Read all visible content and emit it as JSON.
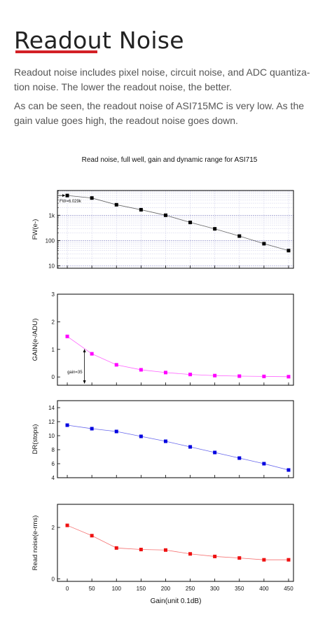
{
  "heading": "Readout Noise",
  "paragraphs": [
    "Readout noise includes pixel noise, circuit noise, and ADC quantiza-tion noise. The lower the readout noise, the better.",
    "As can be seen, the readout noise of ASI715MC is very low. As the gain value goes high, the readout noise goes down."
  ],
  "colors": {
    "accent": "#d32026",
    "fw": "#000000",
    "gain": "#ff00ff",
    "dr": "#0000e0",
    "rn": "#ee1111"
  },
  "chart_data": {
    "type": "scatter",
    "title": "Read noise, full well, gain and dynamic range for ASI715",
    "xlabel": "Gain(unit 0.1dB)",
    "x": [
      0,
      50,
      100,
      150,
      200,
      250,
      300,
      350,
      400,
      450
    ],
    "xticks": [
      "0",
      "50",
      "100",
      "150",
      "200",
      "250",
      "300",
      "350",
      "400",
      "450"
    ],
    "xlim": [
      -20,
      460
    ],
    "panels": [
      {
        "key": "fw",
        "ylabel": "FW(e-)",
        "scale": "log",
        "ylim": [
          8,
          9500
        ],
        "yticks": [
          {
            "v": 10,
            "t": "10"
          },
          {
            "v": 100,
            "t": "100"
          },
          {
            "v": 1000,
            "t": "1k"
          }
        ],
        "grid": true,
        "values": [
          6029,
          4800,
          2600,
          1650,
          1000,
          520,
          290,
          150,
          75,
          40
        ],
        "annotation": "FW=6.029k"
      },
      {
        "key": "gain",
        "ylabel": "GAIN(e-/ADU)",
        "scale": "linear",
        "ylim": [
          -0.3,
          3
        ],
        "yticks": [
          {
            "v": 0,
            "t": "0"
          },
          {
            "v": 1,
            "t": "1"
          },
          {
            "v": 2,
            "t": "2"
          },
          {
            "v": 3,
            "t": "3"
          }
        ],
        "grid": false,
        "values": [
          1.47,
          0.84,
          0.44,
          0.26,
          0.16,
          0.09,
          0.05,
          0.03,
          0.02,
          0.01
        ],
        "annotation": "gain=35",
        "marker_x": 35
      },
      {
        "key": "dr",
        "ylabel": "DR(stops)",
        "scale": "linear",
        "ylim": [
          4,
          15
        ],
        "yticks": [
          {
            "v": 4,
            "t": "4"
          },
          {
            "v": 6,
            "t": "6"
          },
          {
            "v": 8,
            "t": "8"
          },
          {
            "v": 10,
            "t": "10"
          },
          {
            "v": 12,
            "t": "12"
          },
          {
            "v": 14,
            "t": "14"
          }
        ],
        "grid": false,
        "values": [
          11.5,
          11.0,
          10.6,
          9.9,
          9.2,
          8.4,
          7.6,
          6.8,
          6.0,
          5.1
        ]
      },
      {
        "key": "rn",
        "ylabel": "Read noise(e-rms)",
        "scale": "linear",
        "ylim": [
          -0.1,
          2.9
        ],
        "yticks": [
          {
            "v": 0,
            "t": "0"
          },
          {
            "v": 2,
            "t": "2"
          }
        ],
        "grid": false,
        "values": [
          2.08,
          1.68,
          1.2,
          1.14,
          1.12,
          0.97,
          0.87,
          0.81,
          0.74,
          0.74
        ]
      }
    ]
  }
}
